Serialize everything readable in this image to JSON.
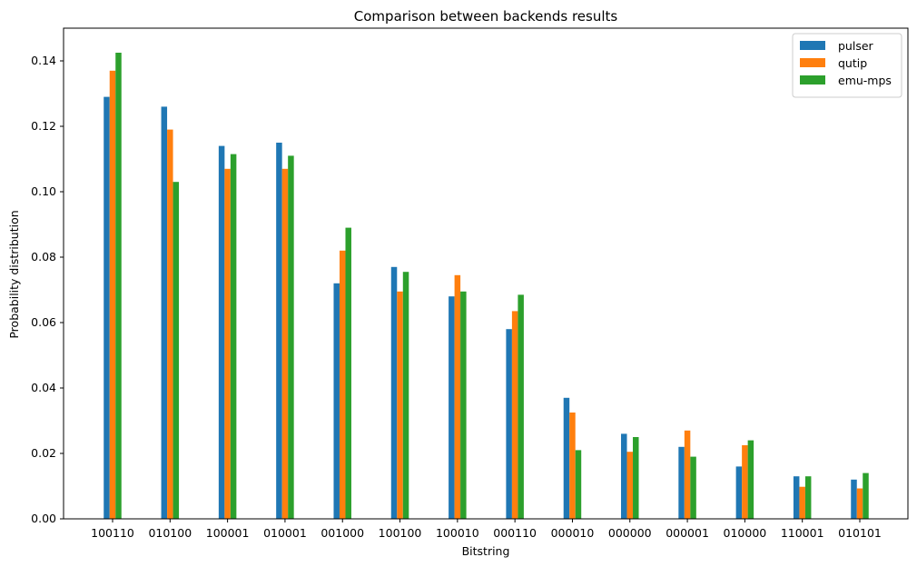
{
  "chart_data": {
    "type": "bar",
    "title": "Comparison between backends results",
    "xlabel": "Bitstring",
    "ylabel": "Probability distribution",
    "ylim": [
      0,
      0.15
    ],
    "yticks": [
      0.0,
      0.02,
      0.04,
      0.06,
      0.08,
      0.1,
      0.12,
      0.14
    ],
    "ytick_labels": [
      "0.00",
      "0.02",
      "0.04",
      "0.06",
      "0.08",
      "0.10",
      "0.12",
      "0.14"
    ],
    "grid": false,
    "legend_position": "top-right",
    "categories": [
      "100110",
      "010100",
      "100001",
      "010001",
      "001000",
      "100100",
      "100010",
      "000110",
      "000010",
      "000000",
      "000001",
      "010000",
      "110001",
      "010101"
    ],
    "series": [
      {
        "name": "pulser",
        "color": "#1f77b4",
        "values": [
          0.129,
          0.126,
          0.114,
          0.115,
          0.072,
          0.077,
          0.068,
          0.058,
          0.037,
          0.026,
          0.022,
          0.016,
          0.013,
          0.012
        ]
      },
      {
        "name": "qutip",
        "color": "#ff7f0e",
        "values": [
          0.137,
          0.119,
          0.107,
          0.107,
          0.082,
          0.0695,
          0.0745,
          0.0635,
          0.0325,
          0.0205,
          0.027,
          0.0225,
          0.0098,
          0.0093
        ]
      },
      {
        "name": "emu-mps",
        "color": "#2ca02c",
        "values": [
          0.1425,
          0.103,
          0.1115,
          0.111,
          0.089,
          0.0755,
          0.0695,
          0.0685,
          0.021,
          0.025,
          0.019,
          0.024,
          0.013,
          0.014
        ]
      }
    ]
  }
}
